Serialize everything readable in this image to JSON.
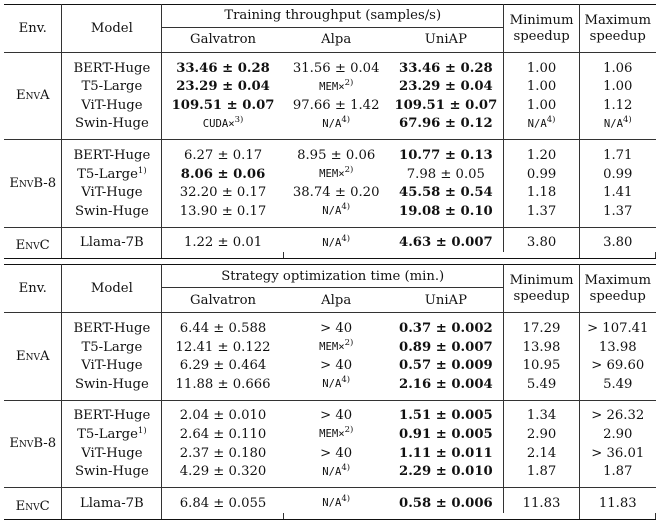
{
  "header_labels": {
    "env": "Env.",
    "model": "Model",
    "systems": [
      "Galvatron",
      "Alpa",
      "UniAP"
    ],
    "min_speedup": [
      "Minimum",
      "speedup"
    ],
    "max_speedup": [
      "Maximum",
      "speedup"
    ]
  },
  "sections": [
    {
      "title": "Training throughput (samples/s)",
      "groups": [
        {
          "env": "EnvA",
          "rows": [
            {
              "model": "BERT-Huge",
              "model_sup": "",
              "galvatron": "33.46 ± 0.28",
              "galvatron_bold": true,
              "alpa": "31.56 ± 0.04",
              "alpa_sup": "",
              "alpa_mono": false,
              "uniap": "33.46 ± 0.28",
              "uniap_bold": true,
              "min": "1.00",
              "min_sup": "",
              "max": "1.06",
              "max_sup": ""
            },
            {
              "model": "T5-Large",
              "model_sup": "",
              "galvatron": "23.29 ± 0.04",
              "galvatron_bold": true,
              "alpa": "MEM×",
              "alpa_sup": "2)",
              "alpa_mono": true,
              "uniap": "23.29 ± 0.04",
              "uniap_bold": true,
              "min": "1.00",
              "min_sup": "",
              "max": "1.00",
              "max_sup": ""
            },
            {
              "model": "ViT-Huge",
              "model_sup": "",
              "galvatron": "109.51 ± 0.07",
              "galvatron_bold": true,
              "alpa": "97.66 ± 1.42",
              "alpa_sup": "",
              "alpa_mono": false,
              "uniap": "109.51 ± 0.07",
              "uniap_bold": true,
              "min": "1.00",
              "min_sup": "",
              "max": "1.12",
              "max_sup": ""
            },
            {
              "model": "Swin-Huge",
              "model_sup": "",
              "galvatron": "CUDA×",
              "galvatron_sup": "3)",
              "galvatron_mono": true,
              "alpa": "N/A",
              "alpa_sup": "4)",
              "alpa_mono": true,
              "uniap": "67.96 ± 0.12",
              "uniap_bold": true,
              "min": "N/A",
              "min_sup": "4)",
              "min_mono": true,
              "max": "N/A",
              "max_sup": "4)",
              "max_mono": true
            }
          ]
        },
        {
          "env": "EnvB-8",
          "rows": [
            {
              "model": "BERT-Huge",
              "model_sup": "",
              "galvatron": "6.27 ± 0.17",
              "alpa": "8.95 ± 0.06",
              "alpa_sup": "",
              "uniap": "10.77 ± 0.13",
              "uniap_bold": true,
              "min": "1.20",
              "max": "1.71"
            },
            {
              "model": "T5-Large",
              "model_sup": "1)",
              "galvatron": "8.06 ± 0.06",
              "galvatron_bold": true,
              "alpa": "MEM×",
              "alpa_sup": "2)",
              "alpa_mono": true,
              "uniap": "7.98 ± 0.05",
              "min": "0.99",
              "max": "0.99"
            },
            {
              "model": "ViT-Huge",
              "model_sup": "",
              "galvatron": "32.20 ± 0.17",
              "alpa": "38.74 ± 0.20",
              "alpa_sup": "",
              "uniap": "45.58 ± 0.54",
              "uniap_bold": true,
              "min": "1.18",
              "max": "1.41"
            },
            {
              "model": "Swin-Huge",
              "model_sup": "",
              "galvatron": "13.90 ± 0.17",
              "alpa": "N/A",
              "alpa_sup": "4)",
              "alpa_mono": true,
              "uniap": "19.08 ± 0.10",
              "uniap_bold": true,
              "min": "1.37",
              "max": "1.37"
            }
          ]
        },
        {
          "env": "EnvC",
          "rows": [
            {
              "model": "Llama-7B",
              "model_sup": "",
              "galvatron": "1.22 ± 0.01",
              "alpa": "N/A",
              "alpa_sup": "4)",
              "alpa_mono": true,
              "uniap": "4.63 ± 0.007",
              "uniap_bold": true,
              "min": "3.80",
              "max": "3.80"
            }
          ]
        }
      ]
    },
    {
      "title": "Strategy optimization time (min.)",
      "groups": [
        {
          "env": "EnvA",
          "rows": [
            {
              "model": "BERT-Huge",
              "model_sup": "",
              "galvatron": "6.44 ± 0.588",
              "alpa": "> 40",
              "alpa_sup": "",
              "uniap": "0.37 ± 0.002",
              "uniap_bold": true,
              "min": "17.29",
              "max": "> 107.41"
            },
            {
              "model": "T5-Large",
              "model_sup": "",
              "galvatron": "12.41 ± 0.122",
              "alpa": "MEM×",
              "alpa_sup": "2)",
              "alpa_mono": true,
              "uniap": "0.89 ± 0.007",
              "uniap_bold": true,
              "min": "13.98",
              "max": "13.98"
            },
            {
              "model": "ViT-Huge",
              "model_sup": "",
              "galvatron": "6.29 ± 0.464",
              "alpa": "> 40",
              "alpa_sup": "",
              "uniap": "0.57 ± 0.009",
              "uniap_bold": true,
              "min": "10.95",
              "max": "> 69.60"
            },
            {
              "model": "Swin-Huge",
              "model_sup": "",
              "galvatron": "11.88 ± 0.666",
              "alpa": "N/A",
              "alpa_sup": "4)",
              "alpa_mono": true,
              "uniap": "2.16 ± 0.004",
              "uniap_bold": true,
              "min": "5.49",
              "max": "5.49"
            }
          ]
        },
        {
          "env": "EnvB-8",
          "rows": [
            {
              "model": "BERT-Huge",
              "model_sup": "",
              "galvatron": "2.04 ± 0.010",
              "alpa": "> 40",
              "alpa_sup": "",
              "uniap": "1.51 ± 0.005",
              "uniap_bold": true,
              "min": "1.34",
              "max": "> 26.32"
            },
            {
              "model": "T5-Large",
              "model_sup": "1)",
              "galvatron": "2.64 ± 0.110",
              "alpa": "MEM×",
              "alpa_sup": "2)",
              "alpa_mono": true,
              "uniap": "0.91 ± 0.005",
              "uniap_bold": true,
              "min": "2.90",
              "max": "2.90"
            },
            {
              "model": "ViT-Huge",
              "model_sup": "",
              "galvatron": "2.37 ± 0.180",
              "alpa": "> 40",
              "alpa_sup": "",
              "uniap": "1.11 ± 0.011",
              "uniap_bold": true,
              "min": "2.14",
              "max": "> 36.01"
            },
            {
              "model": "Swin-Huge",
              "model_sup": "",
              "galvatron": "4.29 ± 0.320",
              "alpa": "N/A",
              "alpa_sup": "4)",
              "alpa_mono": true,
              "uniap": "2.29 ± 0.010",
              "uniap_bold": true,
              "min": "1.87",
              "max": "1.87"
            }
          ]
        },
        {
          "env": "EnvC",
          "rows": [
            {
              "model": "Llama-7B",
              "model_sup": "",
              "galvatron": "6.84 ± 0.055",
              "alpa": "N/A",
              "alpa_sup": "4)",
              "alpa_mono": true,
              "uniap": "0.58 ± 0.006",
              "uniap_bold": true,
              "min": "11.83",
              "max": "11.83"
            }
          ]
        }
      ]
    }
  ]
}
